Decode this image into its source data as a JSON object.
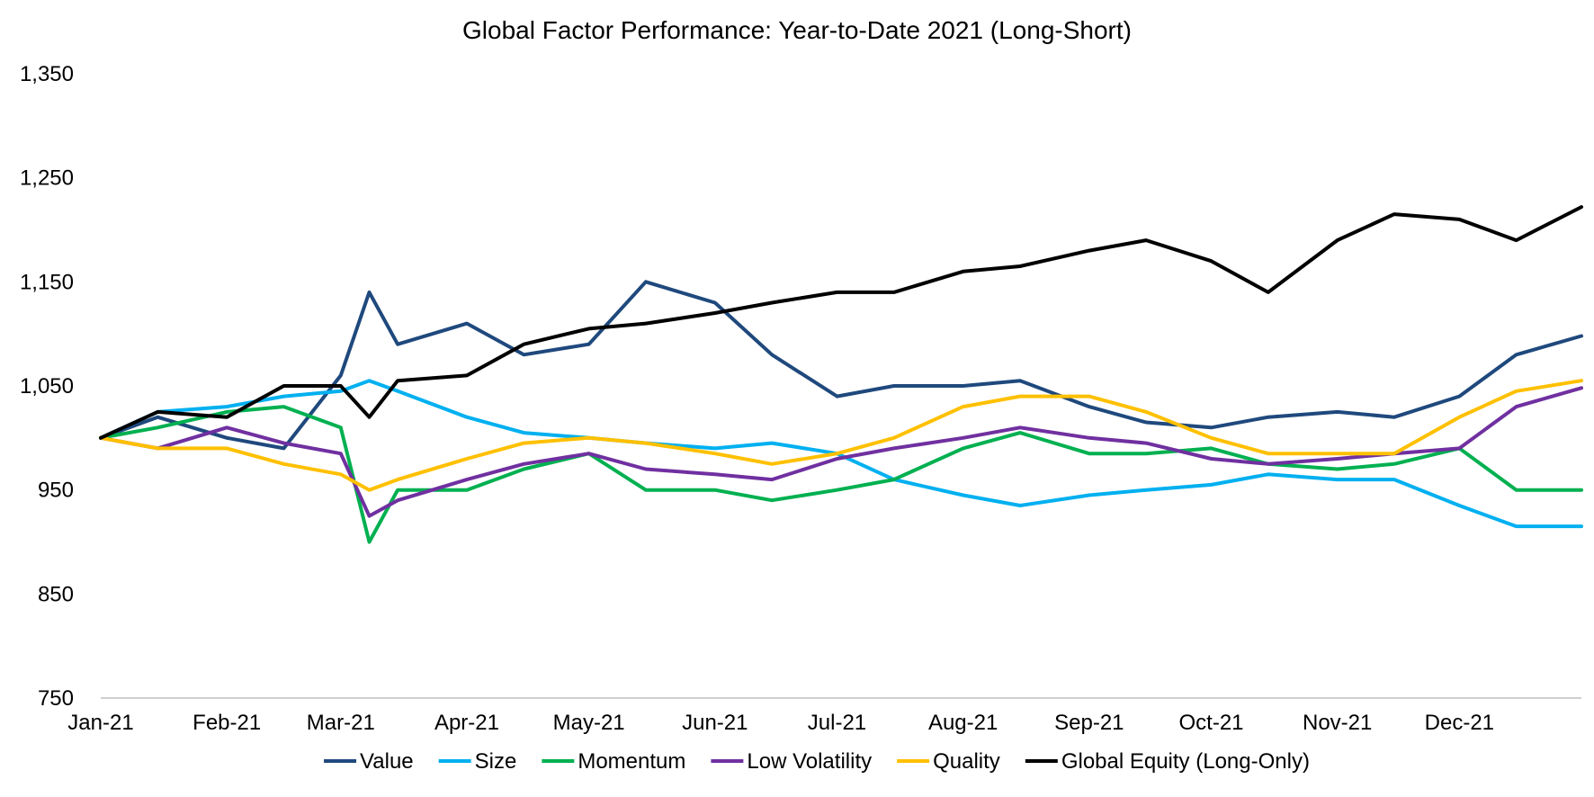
{
  "chart_data": {
    "type": "line",
    "title": "Global Factor Performance: Year-to-Date 2021 (Long-Short)",
    "xlabel": "",
    "ylabel": "",
    "x_ticks": [
      "Jan-21",
      "Feb-21",
      "Mar-21",
      "Apr-21",
      "May-21",
      "Jun-21",
      "Jul-21",
      "Aug-21",
      "Sep-21",
      "Oct-21",
      "Nov-21",
      "Dec-21"
    ],
    "x_range": [
      "2021-01-01",
      "2021-12-31"
    ],
    "y_ticks": [
      "750",
      "850",
      "950",
      "1,050",
      "1,150",
      "1,250",
      "1,350"
    ],
    "ylim": [
      750,
      1350
    ],
    "y_tick_values": [
      750,
      850,
      950,
      1050,
      1150,
      1250,
      1350
    ],
    "grid": false,
    "legend_position": "bottom",
    "x": [
      "2021-01-01",
      "2021-01-15",
      "2021-02-01",
      "2021-02-15",
      "2021-03-01",
      "2021-03-08",
      "2021-03-15",
      "2021-04-01",
      "2021-04-15",
      "2021-05-01",
      "2021-05-15",
      "2021-06-01",
      "2021-06-15",
      "2021-07-01",
      "2021-07-15",
      "2021-08-01",
      "2021-08-15",
      "2021-09-01",
      "2021-09-15",
      "2021-10-01",
      "2021-10-15",
      "2021-11-01",
      "2021-11-15",
      "2021-12-01",
      "2021-12-15",
      "2021-12-31"
    ],
    "series": [
      {
        "name": "Value",
        "color": "#1F497D",
        "values": [
          1000,
          1020,
          1000,
          990,
          1060,
          1140,
          1090,
          1110,
          1080,
          1090,
          1150,
          1130,
          1080,
          1040,
          1050,
          1050,
          1055,
          1030,
          1015,
          1010,
          1020,
          1025,
          1020,
          1040,
          1080,
          1098
        ]
      },
      {
        "name": "Size",
        "color": "#00B0F0",
        "values": [
          1000,
          1025,
          1030,
          1040,
          1045,
          1055,
          1045,
          1020,
          1005,
          1000,
          995,
          990,
          995,
          985,
          960,
          945,
          935,
          945,
          950,
          955,
          965,
          960,
          960,
          935,
          915,
          915
        ]
      },
      {
        "name": "Momentum",
        "color": "#00B050",
        "values": [
          1000,
          1010,
          1025,
          1030,
          1010,
          900,
          950,
          950,
          970,
          985,
          950,
          950,
          940,
          950,
          960,
          990,
          1005,
          985,
          985,
          990,
          975,
          970,
          975,
          990,
          950,
          950
        ]
      },
      {
        "name": "Low Volatility",
        "color": "#7030A0",
        "values": [
          1000,
          990,
          1010,
          995,
          985,
          925,
          940,
          960,
          975,
          985,
          970,
          965,
          960,
          980,
          990,
          1000,
          1010,
          1000,
          995,
          980,
          975,
          980,
          985,
          990,
          1030,
          1048
        ]
      },
      {
        "name": "Quality",
        "color": "#FFC000",
        "values": [
          1000,
          990,
          990,
          975,
          965,
          950,
          960,
          980,
          995,
          1000,
          995,
          985,
          975,
          985,
          1000,
          1030,
          1040,
          1040,
          1025,
          1000,
          985,
          985,
          985,
          1020,
          1045,
          1055
        ]
      },
      {
        "name": "Global Equity (Long-Only)",
        "color": "#000000",
        "values": [
          1000,
          1025,
          1020,
          1050,
          1050,
          1020,
          1055,
          1060,
          1090,
          1105,
          1110,
          1120,
          1130,
          1140,
          1140,
          1160,
          1165,
          1180,
          1190,
          1170,
          1140,
          1190,
          1215,
          1210,
          1190,
          1222
        ]
      }
    ]
  }
}
